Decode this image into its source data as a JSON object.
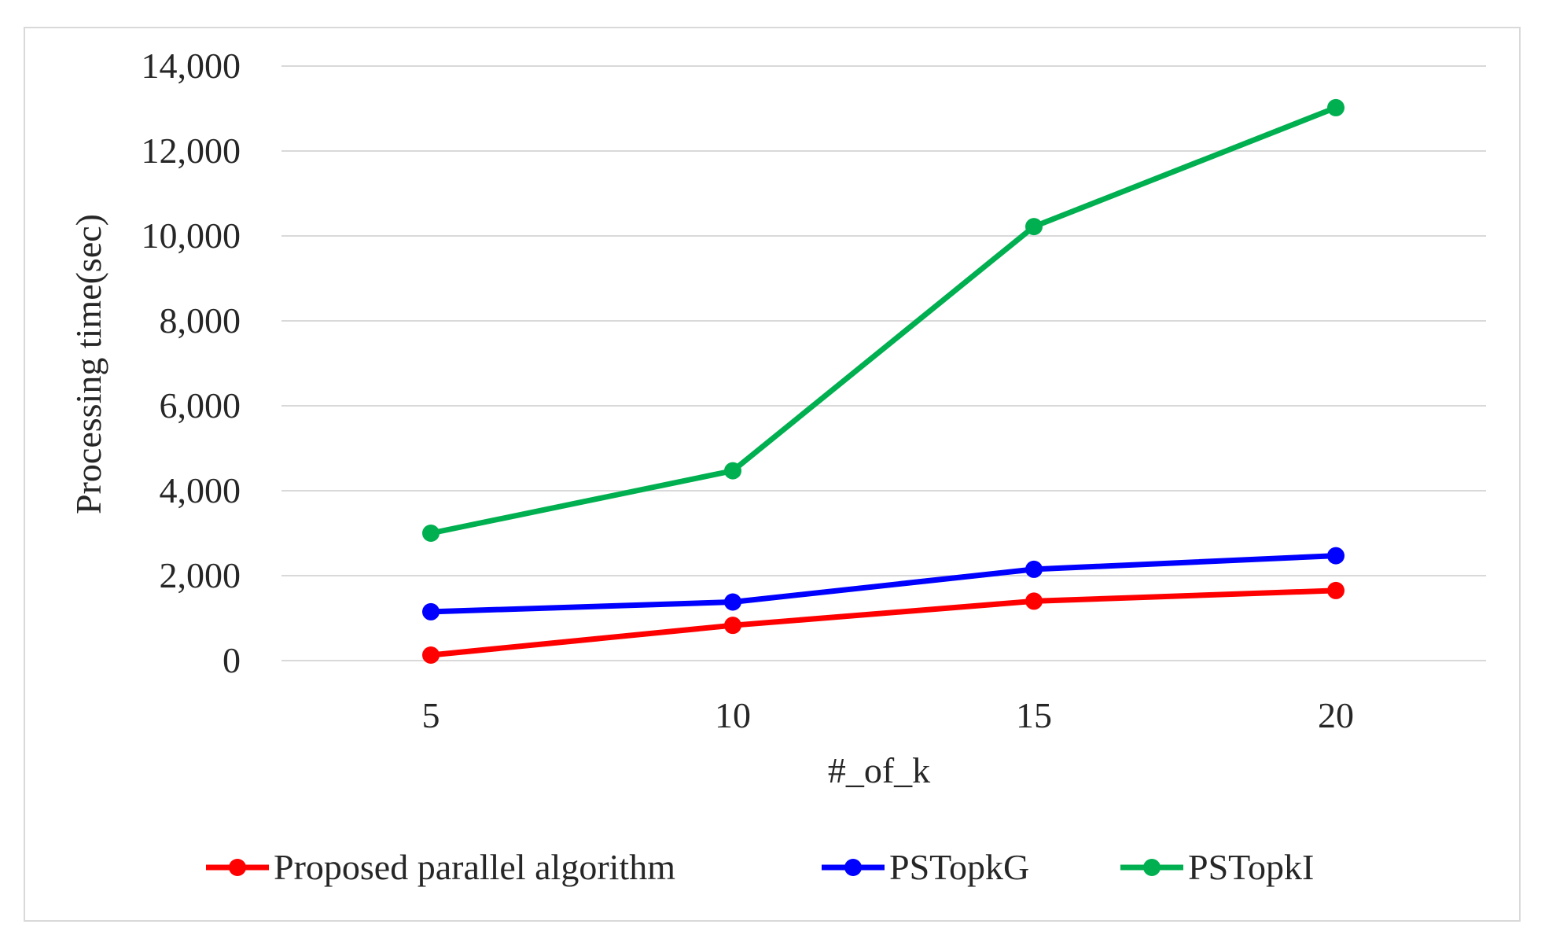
{
  "chart_data": {
    "type": "line",
    "title": "",
    "xlabel": "#_of_k",
    "ylabel": "Processing time(sec)",
    "x": [
      5,
      10,
      15,
      20
    ],
    "categories": [
      "5",
      "10",
      "15",
      "20"
    ],
    "ylim": [
      0,
      14000
    ],
    "yticks": [
      0,
      2000,
      4000,
      6000,
      8000,
      10000,
      12000,
      14000
    ],
    "ytick_labels": [
      "0",
      "2,000",
      "4,000",
      "6,000",
      "8,000",
      "10,000",
      "12,000",
      "14,000"
    ],
    "grid": true,
    "legend_position": "bottom",
    "series": [
      {
        "name": "Proposed parallel algorithm",
        "color": "#ff0000",
        "values": [
          130,
          830,
          1400,
          1650
        ]
      },
      {
        "name": "PSTopkG",
        "color": "#0000ff",
        "values": [
          1150,
          1380,
          2150,
          2470
        ]
      },
      {
        "name": "PSTopkI",
        "color": "#00b050",
        "values": [
          3000,
          4470,
          10220,
          13020
        ]
      }
    ]
  }
}
